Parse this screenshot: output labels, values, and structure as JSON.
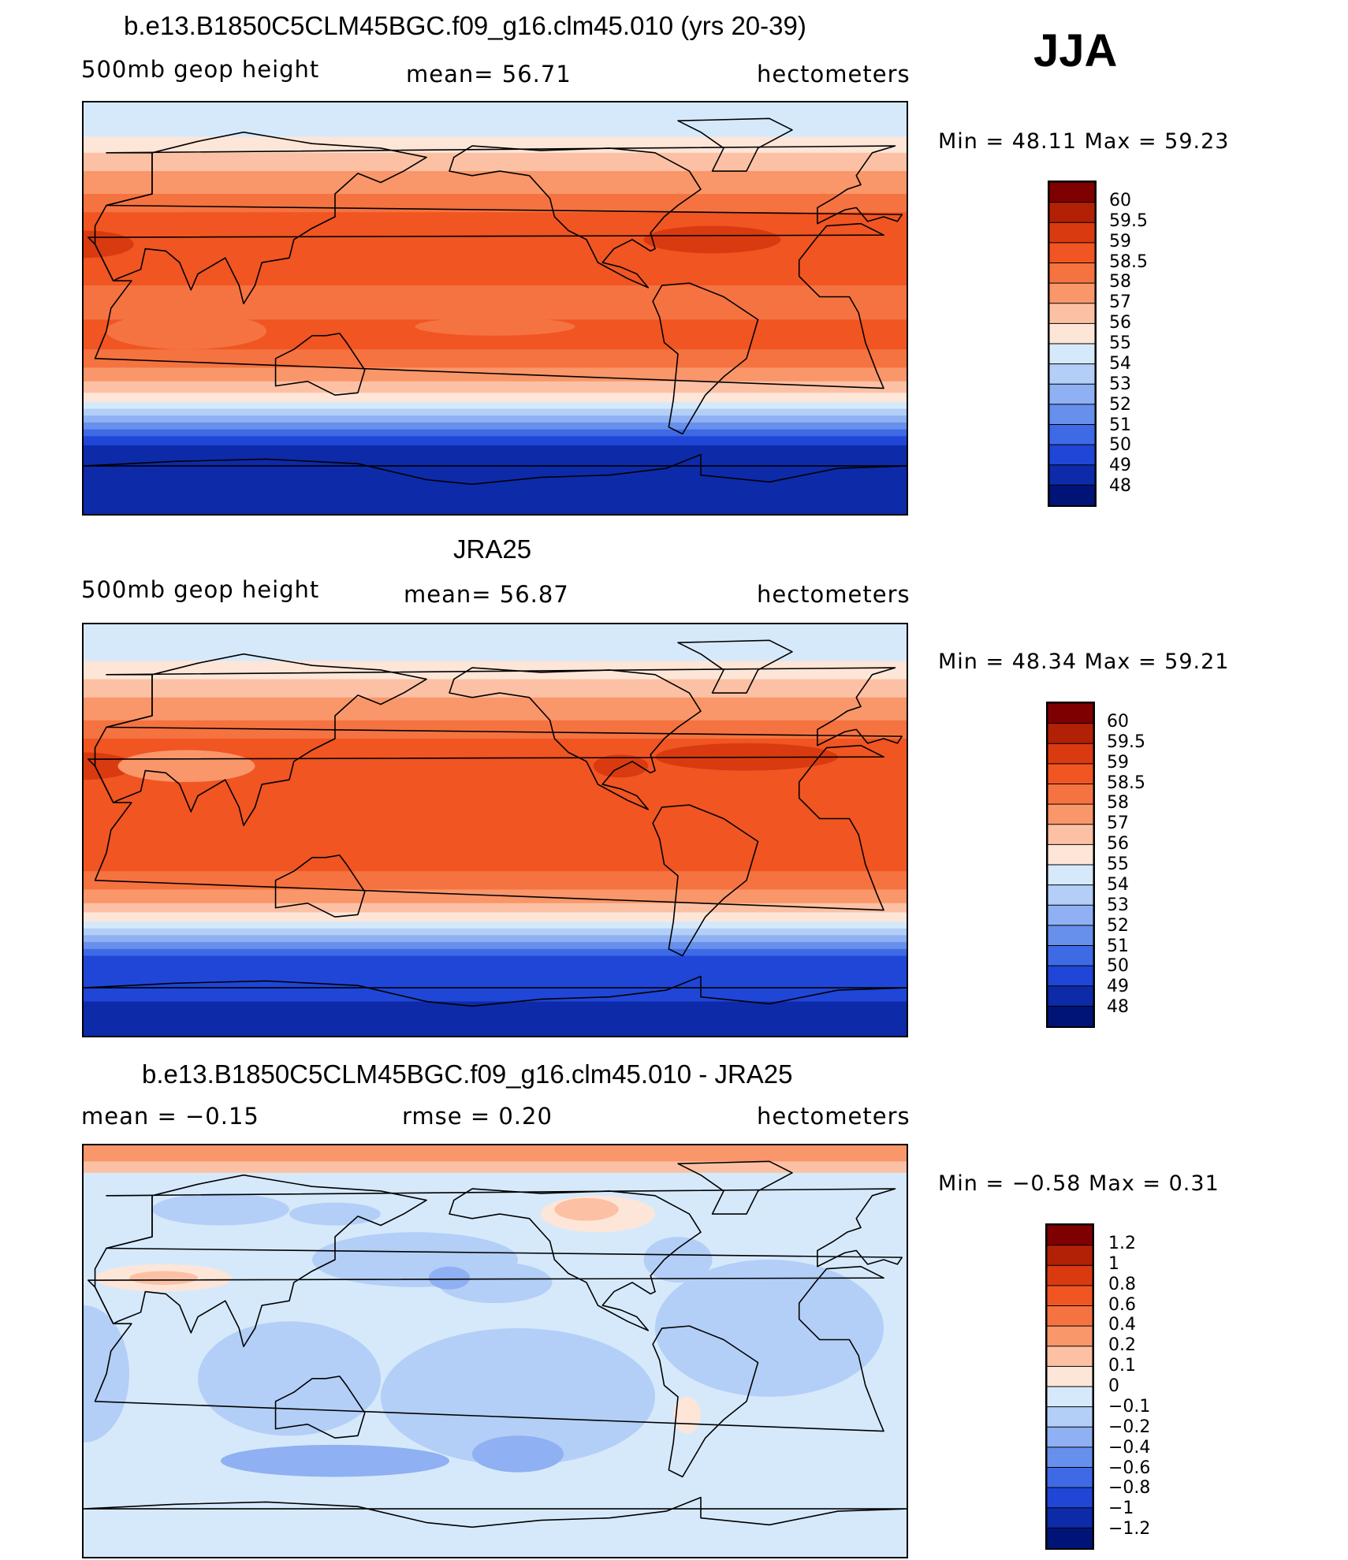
{
  "season_label": "JJA",
  "panels": [
    {
      "title": "b.e13.B1850C5CLM45BGC.f09_g16.clm45.010 (yrs 20-39)",
      "left_label": "500mb geop height",
      "center_label": "mean=  56.71",
      "right_label": "hectometers",
      "min_max_label": "Min =   48.11  Max =   59.23",
      "field": "model",
      "colorbar": {
        "labels": [
          "60",
          "59.5",
          "59",
          "58.5",
          "58",
          "57",
          "56",
          "55",
          "54",
          "53",
          "52",
          "51",
          "50",
          "49",
          "48"
        ],
        "colors": [
          "#7f0000",
          "#b22005",
          "#d93a10",
          "#f05522",
          "#f57340",
          "#f9966a",
          "#fcc1a4",
          "#fde6d8",
          "#d6e9fb",
          "#b3cff7",
          "#8fb0f2",
          "#6690ec",
          "#3e6ae6",
          "#1f46d6",
          "#0d2aa8",
          "#001477"
        ]
      }
    },
    {
      "title": "JRA25",
      "left_label": "500mb geop height",
      "center_label": "mean=  56.87",
      "right_label": "hectometers",
      "min_max_label": "Min =   48.34  Max =   59.21",
      "field": "obs",
      "colorbar": {
        "labels": [
          "60",
          "59.5",
          "59",
          "58.5",
          "58",
          "57",
          "56",
          "55",
          "54",
          "53",
          "52",
          "51",
          "50",
          "49",
          "48"
        ],
        "colors": [
          "#7f0000",
          "#b22005",
          "#d93a10",
          "#f05522",
          "#f57340",
          "#f9966a",
          "#fcc1a4",
          "#fde6d8",
          "#d6e9fb",
          "#b3cff7",
          "#8fb0f2",
          "#6690ec",
          "#3e6ae6",
          "#1f46d6",
          "#0d2aa8",
          "#001477"
        ]
      }
    },
    {
      "title": "b.e13.B1850C5CLM45BGC.f09_g16.clm45.010 - JRA25",
      "left_label": "mean =   −0.15",
      "center_label": "rmse =    0.20",
      "right_label": "hectometers",
      "min_max_label": "Min =   −0.58  Max =    0.31",
      "field": "diff",
      "colorbar": {
        "labels": [
          "1.2",
          "1",
          "0.8",
          "0.6",
          "0.4",
          "0.2",
          "0.1",
          "0",
          "−0.1",
          "−0.2",
          "−0.4",
          "−0.6",
          "−0.8",
          "−1",
          "−1.2"
        ],
        "colors": [
          "#7f0000",
          "#b22005",
          "#d93a10",
          "#f05522",
          "#f57340",
          "#f9966a",
          "#fcc1a4",
          "#fde6d8",
          "#d6e9fb",
          "#b3cff7",
          "#8fb0f2",
          "#6690ec",
          "#3e6ae6",
          "#1f46d6",
          "#0d2aa8",
          "#001477"
        ]
      }
    }
  ]
}
